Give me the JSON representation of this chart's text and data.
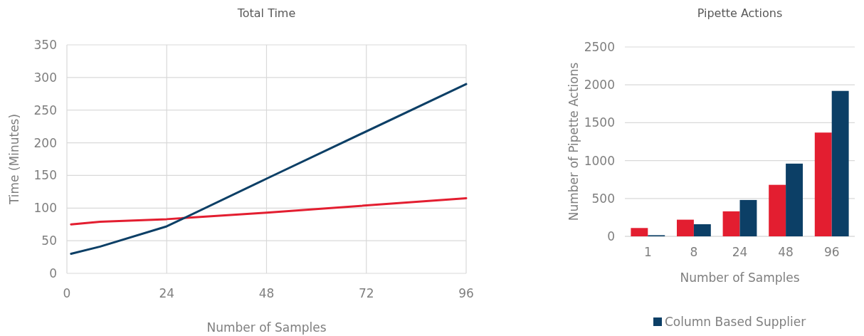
{
  "chart_data": [
    {
      "type": "line",
      "title": "Total Time",
      "xlabel": "Number of Samples",
      "ylabel": "Time (Minutes)",
      "x": [
        1,
        8,
        24,
        48,
        96
      ],
      "xlim": [
        0,
        96
      ],
      "xticks": [
        0,
        24,
        48,
        72,
        96
      ],
      "ylim": [
        0,
        350
      ],
      "yticks": [
        0,
        50,
        100,
        150,
        200,
        250,
        300,
        350
      ],
      "grid": true,
      "legend": false,
      "series": [
        {
          "color": "#e31e30",
          "values": [
            75,
            79,
            83,
            93,
            115
          ]
        },
        {
          "color": "#0c3f66",
          "values": [
            30,
            41,
            72,
            145,
            290
          ]
        }
      ]
    },
    {
      "type": "bar",
      "title": "Pipette Actions",
      "xlabel": "Number of Samples",
      "ylabel": "Number of Pipette Actions",
      "categories": [
        "1",
        "8",
        "24",
        "48",
        "96"
      ],
      "ylim": [
        0,
        2500
      ],
      "yticks": [
        0,
        500,
        1000,
        1500,
        2000,
        2500
      ],
      "grid": "y",
      "legend": "bottom",
      "series": [
        {
          "color": "#e31e30",
          "values": [
            110,
            220,
            330,
            680,
            1370
          ]
        },
        {
          "name": "Column Based Supplier",
          "color": "#0c3f66",
          "values": [
            15,
            160,
            480,
            960,
            1920
          ]
        }
      ]
    }
  ]
}
